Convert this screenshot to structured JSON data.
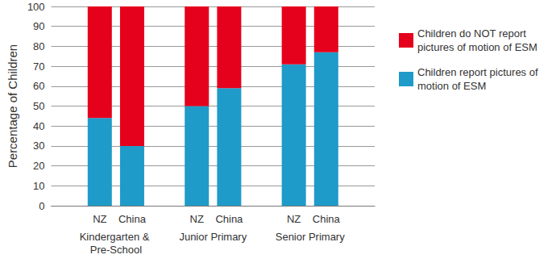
{
  "chart_data": {
    "type": "bar",
    "stacked": true,
    "y_label": "Percentage of Children",
    "categories": [
      null,
      "NZ",
      "China",
      null,
      "NZ",
      "China",
      null,
      "NZ",
      "China",
      null
    ],
    "group_labels": [
      "Kindergarten & Pre-School",
      "Junior Primary",
      "Senior Primary"
    ],
    "series": [
      {
        "name": "Children report pictures of motion of ESM",
        "color": "#1e9bc8",
        "values": [
          null,
          44,
          30,
          null,
          50,
          59,
          null,
          71,
          77,
          null
        ]
      },
      {
        "name": "Children do NOT report pictures of motion of ESM",
        "color": "#e5001c",
        "values": [
          null,
          56,
          70,
          null,
          50,
          41,
          null,
          29,
          23,
          null
        ]
      }
    ],
    "ylim": [
      0,
      100
    ],
    "yticks": [
      0,
      10,
      20,
      30,
      40,
      50,
      60,
      70,
      80,
      90,
      100
    ],
    "grid": true,
    "legend": "right"
  }
}
